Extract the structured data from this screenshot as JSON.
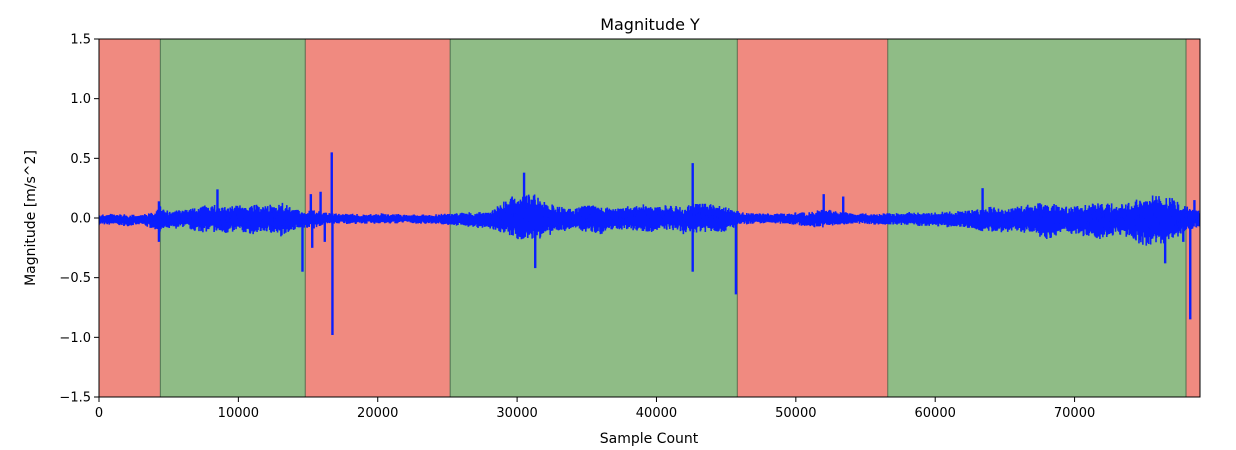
{
  "chart_data": {
    "type": "line",
    "title": "Magnitude Y",
    "xlabel": "Sample Count",
    "ylabel": "Magnitude [m/s^2]",
    "xlim": [
      0,
      79000
    ],
    "ylim": [
      -1.5,
      1.5
    ],
    "x_ticks": [
      0,
      10000,
      20000,
      30000,
      40000,
      50000,
      60000,
      70000
    ],
    "x_tick_labels": [
      "0",
      "10000",
      "20000",
      "30000",
      "40000",
      "50000",
      "60000",
      "70000"
    ],
    "y_ticks": [
      1.5,
      1.0,
      0.5,
      0.0,
      -0.5,
      -1.0,
      -1.5
    ],
    "y_tick_labels": [
      "1.5",
      "1.0",
      "0.5",
      "0.0",
      "−0.5",
      "−1.0",
      "−1.5"
    ],
    "grid": false,
    "legend": "none",
    "colors": {
      "line": "#0a1eff",
      "region_red": "#f08a80",
      "region_green": "#8fbc86",
      "region_border": "#4a6a4a"
    },
    "regions": [
      {
        "start": 0,
        "end": 4400,
        "color": "red"
      },
      {
        "start": 4400,
        "end": 14800,
        "color": "green"
      },
      {
        "start": 14800,
        "end": 25200,
        "color": "red"
      },
      {
        "start": 25200,
        "end": 45800,
        "color": "green"
      },
      {
        "start": 45800,
        "end": 56600,
        "color": "red"
      },
      {
        "start": 56600,
        "end": 78000,
        "color": "green"
      },
      {
        "start": 78000,
        "end": 79000,
        "color": "red"
      }
    ],
    "envelope": {
      "x": [
        0,
        1000,
        2000,
        3000,
        4000,
        4500,
        5000,
        6000,
        7000,
        8000,
        9000,
        10000,
        11000,
        12000,
        13000,
        14000,
        14800,
        15500,
        16000,
        17000,
        18000,
        19000,
        20000,
        21000,
        22000,
        23000,
        24000,
        25000,
        26000,
        27000,
        28000,
        29000,
        30000,
        31000,
        32000,
        33000,
        34000,
        35000,
        36000,
        37000,
        38000,
        39000,
        40000,
        41000,
        42000,
        43000,
        44000,
        45000,
        46000,
        47000,
        48000,
        49000,
        50000,
        51000,
        52000,
        53000,
        54000,
        55000,
        56000,
        57000,
        58000,
        59000,
        60000,
        61000,
        62000,
        63000,
        64000,
        65000,
        66000,
        67000,
        68000,
        69000,
        70000,
        71000,
        72000,
        73000,
        74000,
        75000,
        76000,
        77000,
        78000,
        79000
      ],
      "upper": [
        0.03,
        0.04,
        0.03,
        0.03,
        0.05,
        0.12,
        0.06,
        0.07,
        0.09,
        0.12,
        0.1,
        0.11,
        0.12,
        0.1,
        0.14,
        0.08,
        0.06,
        0.07,
        0.05,
        0.04,
        0.04,
        0.03,
        0.04,
        0.04,
        0.03,
        0.03,
        0.03,
        0.04,
        0.05,
        0.05,
        0.06,
        0.15,
        0.2,
        0.22,
        0.14,
        0.1,
        0.08,
        0.12,
        0.1,
        0.09,
        0.1,
        0.12,
        0.11,
        0.12,
        0.1,
        0.14,
        0.12,
        0.1,
        0.05,
        0.04,
        0.04,
        0.04,
        0.05,
        0.05,
        0.08,
        0.06,
        0.04,
        0.04,
        0.04,
        0.04,
        0.05,
        0.05,
        0.05,
        0.06,
        0.06,
        0.08,
        0.1,
        0.08,
        0.1,
        0.12,
        0.14,
        0.12,
        0.1,
        0.12,
        0.14,
        0.12,
        0.14,
        0.2,
        0.2,
        0.18,
        0.1,
        0.06
      ],
      "lower": [
        -0.06,
        -0.06,
        -0.07,
        -0.06,
        -0.1,
        -0.12,
        -0.1,
        -0.08,
        -0.12,
        -0.12,
        -0.14,
        -0.12,
        -0.14,
        -0.12,
        -0.16,
        -0.1,
        -0.08,
        -0.09,
        -0.06,
        -0.05,
        -0.05,
        -0.05,
        -0.05,
        -0.05,
        -0.04,
        -0.05,
        -0.05,
        -0.06,
        -0.07,
        -0.08,
        -0.1,
        -0.14,
        -0.18,
        -0.2,
        -0.16,
        -0.12,
        -0.1,
        -0.12,
        -0.14,
        -0.1,
        -0.1,
        -0.12,
        -0.12,
        -0.1,
        -0.14,
        -0.12,
        -0.12,
        -0.12,
        -0.06,
        -0.05,
        -0.05,
        -0.05,
        -0.06,
        -0.08,
        -0.08,
        -0.07,
        -0.05,
        -0.05,
        -0.06,
        -0.06,
        -0.06,
        -0.07,
        -0.07,
        -0.08,
        -0.08,
        -0.12,
        -0.12,
        -0.12,
        -0.12,
        -0.14,
        -0.18,
        -0.14,
        -0.14,
        -0.16,
        -0.18,
        -0.14,
        -0.18,
        -0.24,
        -0.24,
        -0.2,
        -0.12,
        -0.07
      ]
    },
    "spikes": [
      {
        "x": 4300,
        "y": 0.14
      },
      {
        "x": 4300,
        "y": -0.2
      },
      {
        "x": 8500,
        "y": 0.24
      },
      {
        "x": 14600,
        "y": -0.45
      },
      {
        "x": 15200,
        "y": 0.2
      },
      {
        "x": 15300,
        "y": -0.25
      },
      {
        "x": 15900,
        "y": 0.22
      },
      {
        "x": 16200,
        "y": -0.2
      },
      {
        "x": 16700,
        "y": 0.55
      },
      {
        "x": 16750,
        "y": -0.98
      },
      {
        "x": 30500,
        "y": 0.38
      },
      {
        "x": 31300,
        "y": -0.42
      },
      {
        "x": 42600,
        "y": 0.46
      },
      {
        "x": 42600,
        "y": -0.45
      },
      {
        "x": 45700,
        "y": -0.64
      },
      {
        "x": 52000,
        "y": 0.2
      },
      {
        "x": 53400,
        "y": 0.18
      },
      {
        "x": 63400,
        "y": 0.25
      },
      {
        "x": 76500,
        "y": -0.38
      },
      {
        "x": 77800,
        "y": -0.2
      },
      {
        "x": 78300,
        "y": -0.85
      },
      {
        "x": 78600,
        "y": 0.15
      }
    ]
  }
}
